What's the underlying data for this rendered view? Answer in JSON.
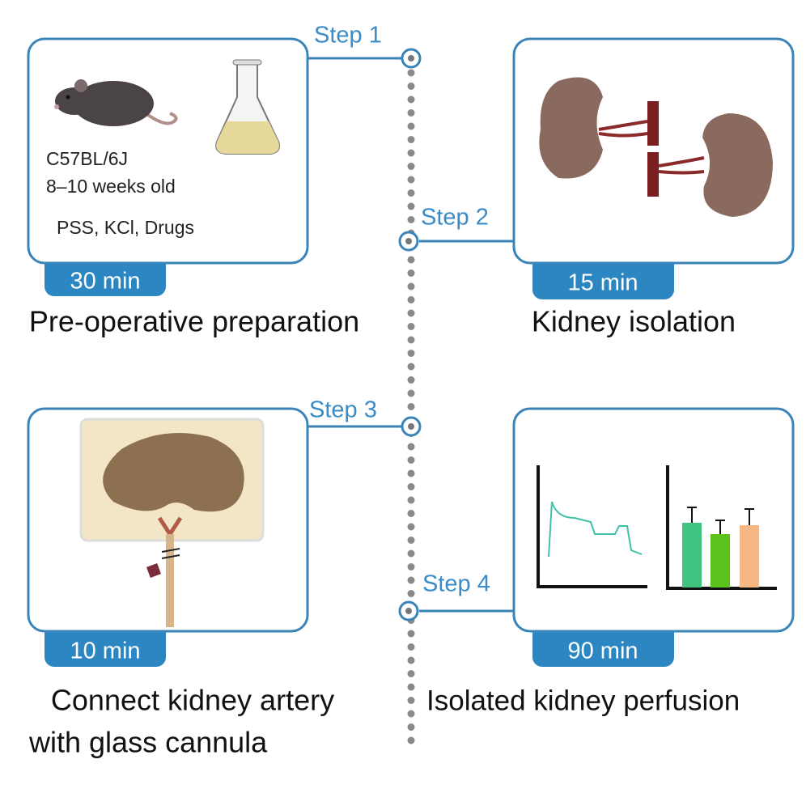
{
  "steps": [
    {
      "label": "Step 1",
      "time": "30 min",
      "caption": [
        "Pre-operative preparation"
      ],
      "notes": [
        "C57BL/6J",
        "8–10  weeks old",
        "PSS, KCl, Drugs"
      ]
    },
    {
      "label": "Step 2",
      "time": "15 min",
      "caption": [
        "Kidney isolation"
      ]
    },
    {
      "label": "Step 3",
      "time": "10 min",
      "caption": [
        "Connect kidney artery",
        "with glass cannula"
      ]
    },
    {
      "label": "Step 4",
      "time": "90 min",
      "caption": [
        "Isolated kidney perfusion"
      ]
    }
  ]
}
